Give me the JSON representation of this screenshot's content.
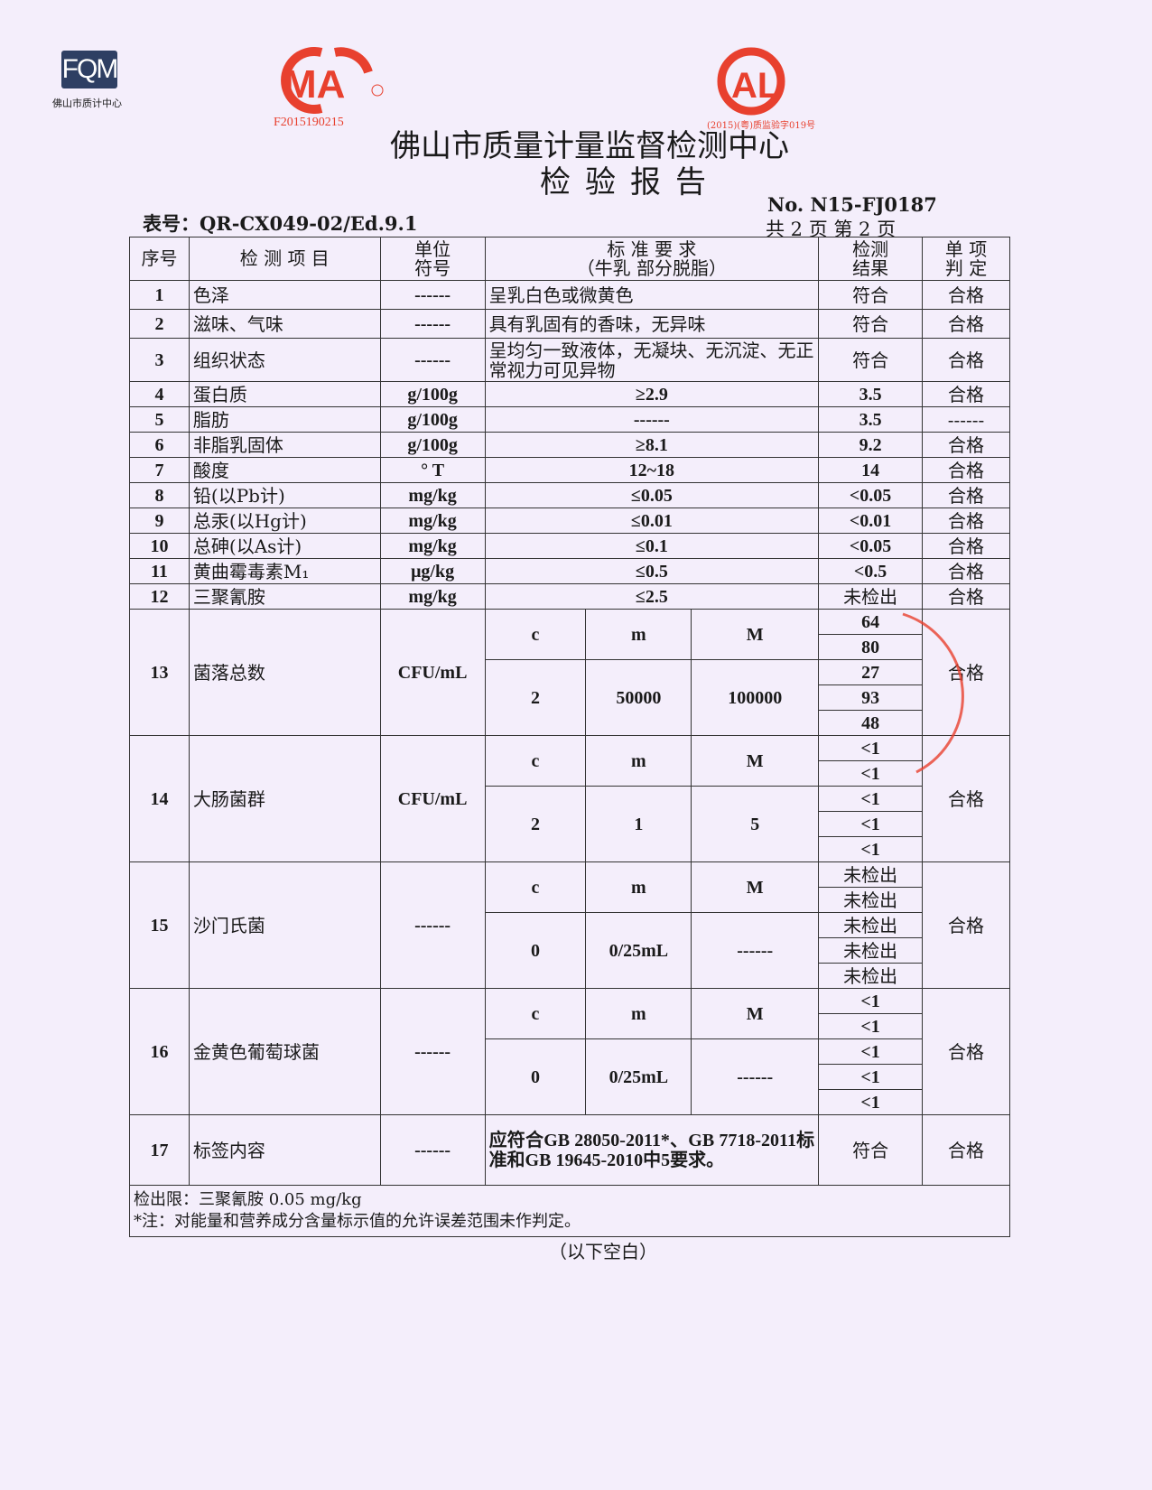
{
  "logos": {
    "fqm": "FQM",
    "fqm_sub": "佛山市质计中心",
    "cma": "CMA",
    "cma_number": "F2015190215",
    "cal": "CAL",
    "cal_number": "(2015)(粤)质监验字019号"
  },
  "colors": {
    "stamp_red": "#e8402e",
    "logo_blue": "#2e3f63",
    "paper": "#f4eefb"
  },
  "header": {
    "title": "佛山市质量计量监督检测中心",
    "subtitle": "检验报告",
    "form_no": "表号：QR-CX049-02/Ed.9.1",
    "report_no": "No.  N15-FJ0187",
    "pages": "共 2 页   第 2 页"
  },
  "table": {
    "headers": [
      "序号",
      "检 测 项 目",
      "单位\n符号",
      "标 准 要 求\n（牛乳 部分脱脂）",
      "检测\n结果",
      "单 项\n判 定"
    ],
    "rows": [
      {
        "no": "1",
        "item": "色泽",
        "unit": "------",
        "std": "呈乳白色或微黄色",
        "result": "符合",
        "judge": "合格"
      },
      {
        "no": "2",
        "item": "滋味、气味",
        "unit": "------",
        "std": "具有乳固有的香味，无异味",
        "result": "符合",
        "judge": "合格"
      },
      {
        "no": "3",
        "item": "组织状态",
        "unit": "------",
        "std": "呈均匀一致液体，无凝块、无沉淀、无正常视力可见异物",
        "result": "符合",
        "judge": "合格"
      },
      {
        "no": "4",
        "item": "蛋白质",
        "unit": "g/100g",
        "std": "≥2.9",
        "result": "3.5",
        "judge": "合格"
      },
      {
        "no": "5",
        "item": "脂肪",
        "unit": "g/100g",
        "std": "------",
        "result": "3.5",
        "judge": "------"
      },
      {
        "no": "6",
        "item": "非脂乳固体",
        "unit": "g/100g",
        "std": "≥8.1",
        "result": "9.2",
        "judge": "合格"
      },
      {
        "no": "7",
        "item": "酸度",
        "unit": "° T",
        "std": "12~18",
        "result": "14",
        "judge": "合格"
      },
      {
        "no": "8",
        "item": "铅(以Pb计)",
        "unit": "mg/kg",
        "std": "≤0.05",
        "result": "<0.05",
        "judge": "合格"
      },
      {
        "no": "9",
        "item": "总汞(以Hg计)",
        "unit": "mg/kg",
        "std": "≤0.01",
        "result": "<0.01",
        "judge": "合格"
      },
      {
        "no": "10",
        "item": "总砷(以As计)",
        "unit": "mg/kg",
        "std": "≤0.1",
        "result": "<0.05",
        "judge": "合格"
      },
      {
        "no": "11",
        "item": "黄曲霉毒素M₁",
        "unit": "μg/kg",
        "std": "≤0.5",
        "result": "<0.5",
        "judge": "合格"
      },
      {
        "no": "12",
        "item": "三聚氰胺",
        "unit": "mg/kg",
        "std": "≤2.5",
        "result": "未检出",
        "judge": "合格"
      }
    ],
    "micro": [
      {
        "no": "13",
        "item": "菌落总数",
        "unit": "CFU/mL",
        "labels": [
          "c",
          "m",
          "M"
        ],
        "values": [
          "2",
          "50000",
          "100000"
        ],
        "results": [
          "64",
          "80",
          "27",
          "93",
          "48"
        ],
        "judge": "合格"
      },
      {
        "no": "14",
        "item": "大肠菌群",
        "unit": "CFU/mL",
        "labels": [
          "c",
          "m",
          "M"
        ],
        "values": [
          "2",
          "1",
          "5"
        ],
        "results": [
          "<1",
          "<1",
          "<1",
          "<1",
          "<1"
        ],
        "judge": "合格"
      },
      {
        "no": "15",
        "item": "沙门氏菌",
        "unit": "------",
        "labels": [
          "c",
          "m",
          "M"
        ],
        "values": [
          "0",
          "0/25mL",
          "------"
        ],
        "results": [
          "未检出",
          "未检出",
          "未检出",
          "未检出",
          "未检出"
        ],
        "judge": "合格"
      },
      {
        "no": "16",
        "item": "金黄色葡萄球菌",
        "unit": "------",
        "labels": [
          "c",
          "m",
          "M"
        ],
        "values": [
          "0",
          "0/25mL",
          "------"
        ],
        "results": [
          "<1",
          "<1",
          "<1",
          "<1",
          "<1"
        ],
        "judge": "合格"
      }
    ],
    "label_row": {
      "no": "17",
      "item": "标签内容",
      "unit": "------",
      "std": "应符合GB 28050-2011*、GB 7718-2011标准和GB 19645-2010中5要求。",
      "result": "符合",
      "judge": "合格"
    },
    "notes": [
      "检出限：三聚氰胺 0.05 mg/kg",
      "*注：对能量和营养成分含量标示值的允许误差范围未作判定。"
    ]
  },
  "blank_note": "（以下空白）"
}
